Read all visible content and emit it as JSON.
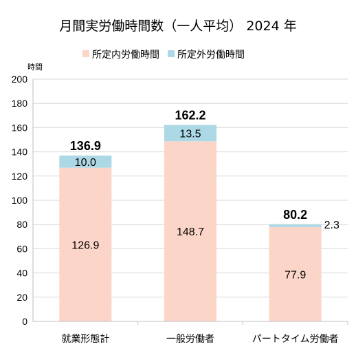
{
  "chart_data": {
    "type": "bar",
    "stacked": true,
    "title": "月間実労働時間数（一人平均） 2024 年",
    "ylabel": "時間",
    "xlabel": "",
    "ylim": [
      0,
      200
    ],
    "yticks": [
      0,
      20,
      40,
      60,
      80,
      100,
      120,
      140,
      160,
      180,
      200
    ],
    "grid": true,
    "legend_position": "top",
    "categories": [
      "就業形態計",
      "一般労働者",
      "パートタイム労働者"
    ],
    "series": [
      {
        "name": "所定内労働時間",
        "values": [
          126.9,
          148.7,
          77.9
        ],
        "labels": [
          "126.9",
          "148.7",
          "77.9"
        ],
        "color": "#FCD5C9"
      },
      {
        "name": "所定外労働時間",
        "values": [
          10.0,
          13.5,
          2.3
        ],
        "labels": [
          "10.0",
          "13.5",
          "2.3"
        ],
        "color": "#ADD8E6"
      }
    ],
    "totals": [
      "136.9",
      "162.2",
      "80.2"
    ]
  }
}
